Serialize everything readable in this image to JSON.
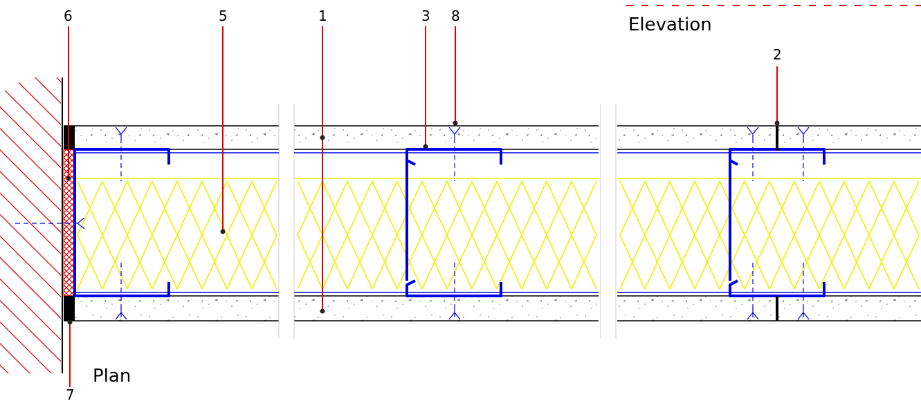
{
  "titles": {
    "plan": "Plan",
    "elevation": "Elevation"
  },
  "callouts": {
    "c1": "1",
    "c2": "2",
    "c3": "3",
    "c5": "5",
    "c6": "6",
    "c7": "7",
    "c8": "8"
  },
  "colors": {
    "leader": "#e00000",
    "stud": "#0000e6",
    "insulation": "#f0f000",
    "outline": "#000000",
    "hatch": "#e00000",
    "board_speckle": "#666666"
  }
}
